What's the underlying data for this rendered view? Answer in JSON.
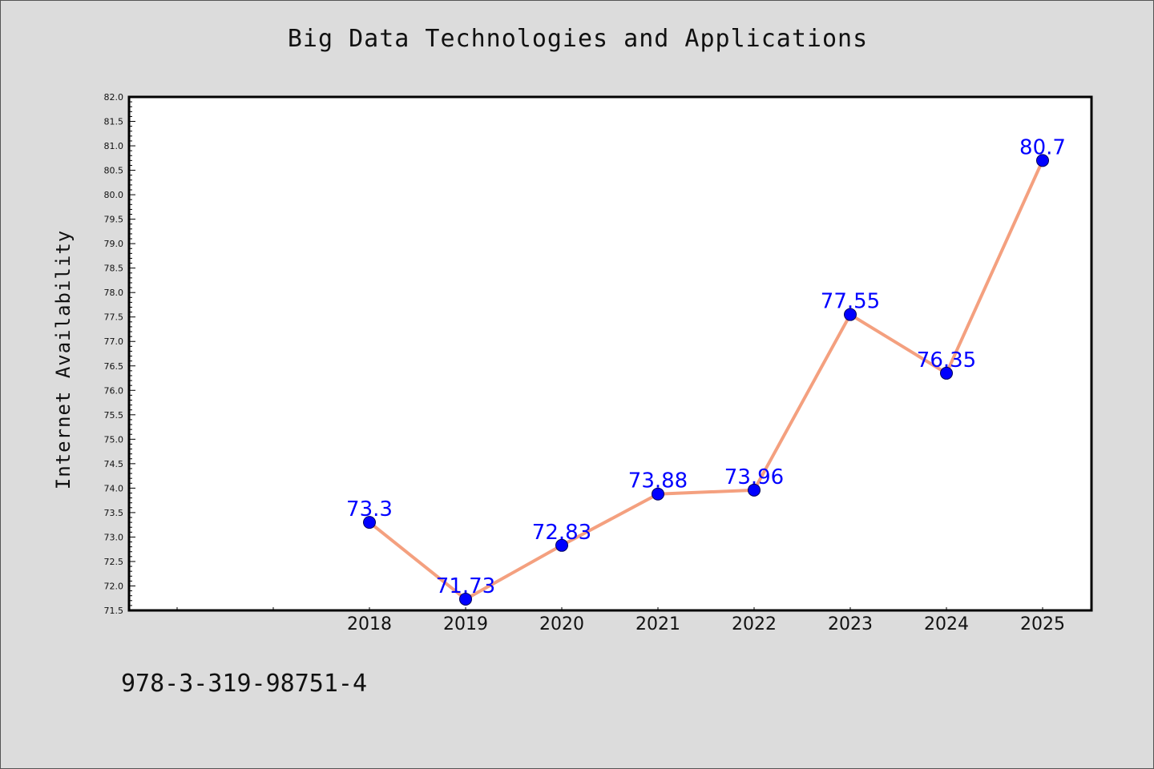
{
  "chart_data": {
    "type": "line",
    "title": "Big Data Technologies and Applications",
    "xlabel": "",
    "ylabel": "Internet Availability",
    "categories": [
      "2018",
      "2019",
      "2020",
      "2021",
      "2022",
      "2023",
      "2024",
      "2025"
    ],
    "values": [
      73.3,
      71.73,
      72.83,
      73.88,
      73.96,
      77.55,
      76.35,
      80.7
    ],
    "data_labels": [
      "73.3",
      "71.73",
      "72.83",
      "73.88",
      "73.96",
      "77.55",
      "76.35",
      "80.7"
    ],
    "ylim": [
      71.5,
      82.0
    ],
    "yticks": [
      "71.5",
      "72.0",
      "72.5",
      "73.0",
      "73.5",
      "74.0",
      "74.5",
      "75.0",
      "75.5",
      "76.0",
      "76.5",
      "77.0",
      "77.5",
      "78.0",
      "78.5",
      "79.0",
      "79.5",
      "80.0",
      "80.5",
      "81.0",
      "81.5",
      "82.0"
    ],
    "grid": false,
    "line_color": "#f4a07f",
    "marker_color": "#0000ff",
    "label_color": "#0000ff"
  },
  "footer": {
    "isbn": "978-3-319-98751-4"
  }
}
